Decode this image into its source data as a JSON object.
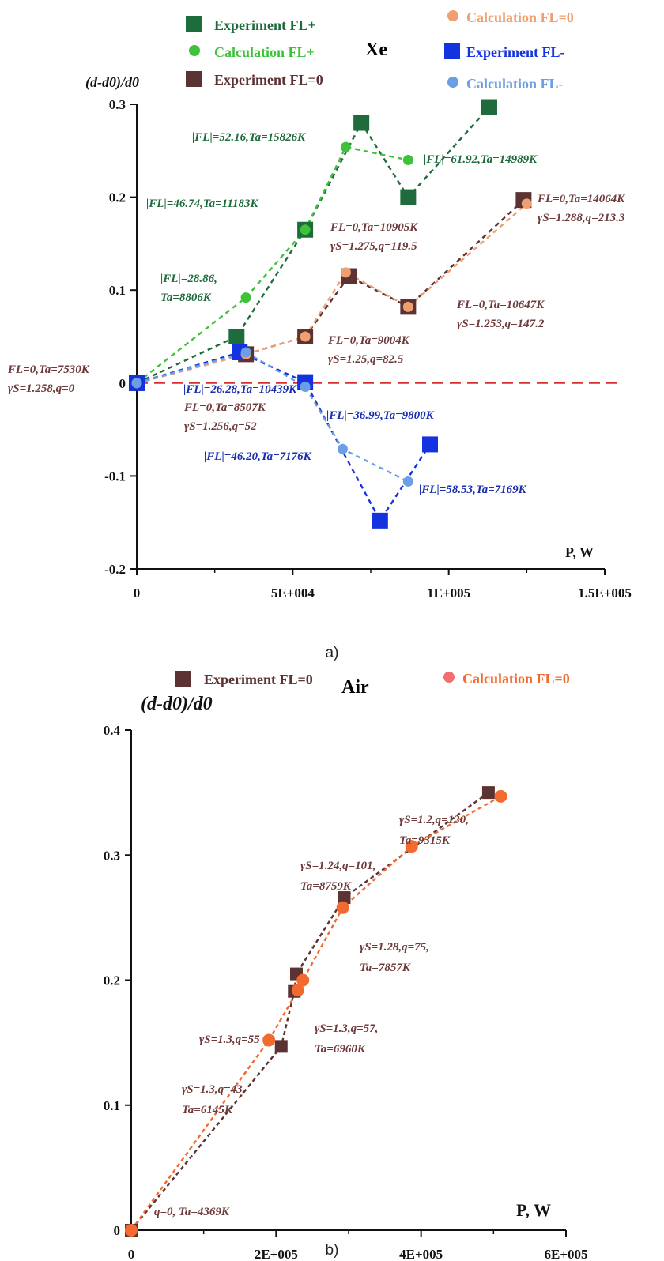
{
  "colors": {
    "exp_plus": "#1e6b3c",
    "calc_plus": "#3ec23a",
    "exp_zero": "#5c3232",
    "calc_zero": "#f0a070",
    "exp_minus": "#1433e0",
    "calc_minus": "#6b9ee6",
    "zero_line": "#d63030",
    "air_exp": "#5c3232",
    "air_calc": "#f26a30",
    "air_calc_legend": "#f07070",
    "label_plus": "#1e6b3c",
    "label_zero": "#6e3a3a",
    "label_minus": "#1a2fb0"
  },
  "chart_data": [
    {
      "type": "scatter",
      "panel_caption": "a)",
      "gas": "Xe",
      "ylabel": "(d-d0)/d0",
      "xlabel": "P, W",
      "xlim": [
        0,
        150000
      ],
      "ylim": [
        -0.2,
        0.3
      ],
      "x_ticks": [
        "0",
        "5E+004",
        "1E+005",
        "1.5E+005"
      ],
      "x_tick_values": [
        0,
        50000,
        100000,
        150000
      ],
      "y_ticks": [
        "0.3",
        "0.2",
        "0.1",
        "0",
        "-0.1",
        "-0.2"
      ],
      "y_tick_values": [
        0.3,
        0.2,
        0.1,
        0,
        -0.1,
        -0.2
      ],
      "zero_line": true,
      "legend": [
        {
          "label": "Experiment FL+",
          "series": "exp_plus",
          "marker": "square"
        },
        {
          "label": "Calculation FL+",
          "series": "calc_plus",
          "marker": "circle"
        },
        {
          "label": "Experiment FL=0",
          "series": "exp_zero",
          "marker": "square"
        },
        {
          "label": "Calculation FL=0",
          "series": "calc_zero",
          "marker": "circle"
        },
        {
          "label": "Experiment FL-",
          "series": "exp_minus",
          "marker": "square"
        },
        {
          "label": "Calculation FL-",
          "series": "calc_minus",
          "marker": "circle"
        }
      ],
      "series": [
        {
          "key": "exp_plus",
          "marker": "square",
          "points": [
            [
              0,
              0
            ],
            [
              32000,
              0.05
            ],
            [
              54000,
              0.165
            ],
            [
              72000,
              0.28
            ],
            [
              87000,
              0.2
            ],
            [
              113000,
              0.297
            ]
          ]
        },
        {
          "key": "calc_plus",
          "marker": "circle",
          "points": [
            [
              0,
              0
            ],
            [
              35000,
              0.092
            ],
            [
              54000,
              0.165
            ],
            [
              67000,
              0.254
            ],
            [
              87000,
              0.24
            ]
          ]
        },
        {
          "key": "exp_zero",
          "marker": "square",
          "points": [
            [
              0,
              0
            ],
            [
              35000,
              0.031
            ],
            [
              54000,
              0.05
            ],
            [
              68000,
              0.115
            ],
            [
              87000,
              0.082
            ],
            [
              124000,
              0.197
            ]
          ]
        },
        {
          "key": "calc_zero",
          "marker": "circle",
          "points": [
            [
              0,
              0
            ],
            [
              35000,
              0.031
            ],
            [
              54000,
              0.05
            ],
            [
              67000,
              0.119
            ],
            [
              87000,
              0.082
            ],
            [
              125000,
              0.193
            ]
          ]
        },
        {
          "key": "exp_minus",
          "marker": "square",
          "points": [
            [
              0,
              0
            ],
            [
              33000,
              0.033
            ],
            [
              54000,
              0.001
            ],
            [
              78000,
              -0.148
            ],
            [
              94000,
              -0.066
            ]
          ]
        },
        {
          "key": "calc_minus",
          "marker": "circle",
          "points": [
            [
              0,
              0
            ],
            [
              35000,
              0.033
            ],
            [
              54000,
              -0.004
            ],
            [
              66000,
              -0.071
            ],
            [
              87000,
              -0.106
            ]
          ]
        }
      ],
      "annotations": [
        {
          "series": "calc_plus",
          "lines": [
            "|FL|=52.16,Ta=15826K"
          ]
        },
        {
          "series": "calc_plus",
          "lines": [
            "|FL|=61.92,Ta=14989K"
          ]
        },
        {
          "series": "calc_plus",
          "lines": [
            "|FL|=46.74,Ta=11183K"
          ]
        },
        {
          "series": "calc_plus",
          "lines": [
            "|FL|=28.86,",
            "Ta=8806K"
          ]
        },
        {
          "series": "exp_zero",
          "lines": [
            "FL=0,Ta=14064K",
            "γS=1.288,q=213.3"
          ]
        },
        {
          "series": "exp_zero",
          "lines": [
            "FL=0,Ta=10905K",
            "γS=1.275,q=119.5"
          ]
        },
        {
          "series": "exp_zero",
          "lines": [
            "FL=0,Ta=10647K",
            "γS=1.253,q=147.2"
          ]
        },
        {
          "series": "exp_zero",
          "lines": [
            "FL=0,Ta=9004K",
            "γS=1.25,q=82.5"
          ]
        },
        {
          "series": "exp_zero",
          "lines": [
            "FL=0,Ta=7530K",
            "γS=1.258,q=0"
          ]
        },
        {
          "series": "exp_zero",
          "lines": [
            "FL=0,Ta=8507K",
            "γS=1.256,q=52"
          ]
        },
        {
          "series": "exp_minus",
          "lines": [
            "|FL|=26.28,Ta=10439K"
          ]
        },
        {
          "series": "exp_minus",
          "lines": [
            "|FL|=36.99,Ta=9800K"
          ]
        },
        {
          "series": "exp_minus",
          "lines": [
            "|FL|=46.20,Ta=7176K"
          ]
        },
        {
          "series": "exp_minus",
          "lines": [
            "|FL|=58.53,Ta=7169K"
          ]
        }
      ]
    },
    {
      "type": "scatter",
      "panel_caption": "b)",
      "gas": "Air",
      "ylabel": "(d-d0)/d0",
      "xlabel": "P, W",
      "xlim": [
        0,
        600000
      ],
      "ylim": [
        0,
        0.4
      ],
      "x_ticks": [
        "0",
        "2E+005",
        "4E+005",
        "6E+005"
      ],
      "x_tick_values": [
        0,
        200000,
        400000,
        600000
      ],
      "y_ticks": [
        "0.4",
        "0.3",
        "0.2",
        "0.1",
        "0"
      ],
      "y_tick_values": [
        0.4,
        0.3,
        0.2,
        0.1,
        0
      ],
      "legend": [
        {
          "label": "Experiment FL=0",
          "series": "air_exp",
          "marker": "square"
        },
        {
          "label": "Calculation FL=0",
          "series": "air_calc",
          "marker": "circle"
        }
      ],
      "series": [
        {
          "key": "air_exp",
          "marker": "square",
          "points": [
            [
              0,
              0
            ],
            [
              207000,
              0.147
            ],
            [
              225000,
              0.191
            ],
            [
              228000,
              0.205
            ],
            [
              294000,
              0.266
            ],
            [
              493000,
              0.35
            ]
          ]
        },
        {
          "key": "air_calc",
          "marker": "circle",
          "points": [
            [
              0,
              0
            ],
            [
              190000,
              0.152
            ],
            [
              230000,
              0.192
            ],
            [
              237000,
              0.2
            ],
            [
              292000,
              0.258
            ],
            [
              387000,
              0.307
            ],
            [
              510000,
              0.347
            ]
          ]
        }
      ],
      "annotations": [
        {
          "lines": [
            "γS=1.2,q=130,",
            "Ta=9315K"
          ]
        },
        {
          "lines": [
            "γS=1.24,q=101,",
            "Ta=8759K"
          ]
        },
        {
          "lines": [
            "γS=1.28,q=75,",
            "Ta=7857K"
          ]
        },
        {
          "lines": [
            "γS=1.3,q=55"
          ]
        },
        {
          "lines": [
            "γS=1.3,q=57,",
            "Ta=6960K"
          ]
        },
        {
          "lines": [
            "γS=1.3,q=43,",
            "Ta=6145K"
          ]
        },
        {
          "lines": [
            "q=0, Ta=4369K"
          ]
        }
      ]
    }
  ]
}
